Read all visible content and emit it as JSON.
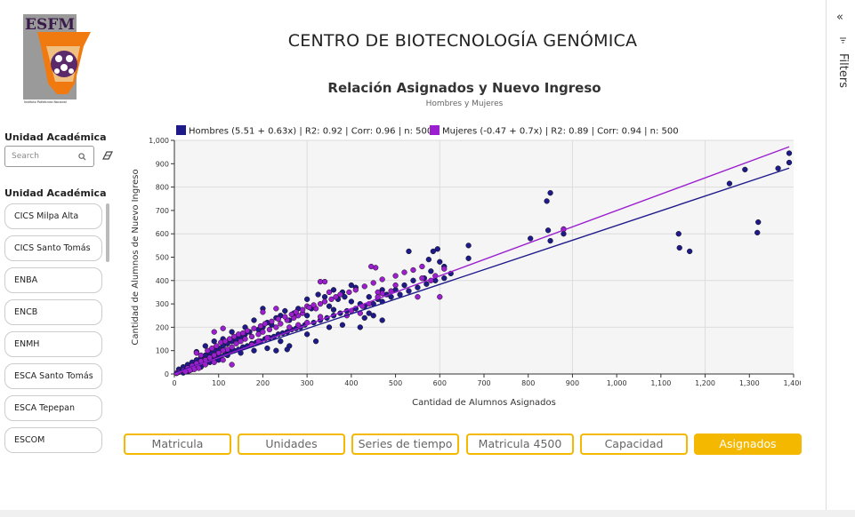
{
  "logo": {
    "text": "ESFM",
    "caption": "Instituto Politécnico Nacional"
  },
  "header": {
    "title": "CENTRO DE BIOTECNOLOGÍA GENÓMICA",
    "chart_title": "Relación Asignados y Nuevo Ingreso",
    "chart_subtitle": "Hombres y Mujeres"
  },
  "sidebar": {
    "section_label_top": "Unidad Académica",
    "search_placeholder": "Search",
    "section_label_list": "Unidad Académica",
    "items": [
      "CICS Milpa Alta",
      "CICS Santo Tomás",
      "ENBA",
      "ENCB",
      "ENMH",
      "ESCA Santo Tomás",
      "ESCA Tepepan",
      "ESCOM"
    ]
  },
  "tabs": [
    "Matricula",
    "Unidades",
    "Series de tiempo",
    "Matricula 4500",
    "Capacidad",
    "Asignados"
  ],
  "active_tab": "Asignados",
  "filters_label": "Filters",
  "colors": {
    "accent": "#f5b800",
    "hombres": "#1f1a8a",
    "mujeres": "#9b1fcf",
    "plot_bg": "#f5f5f5"
  },
  "chart_data": {
    "type": "scatter",
    "xlabel": "Cantidad de Alumnos Asignados",
    "ylabel": "Cantidad de Alumnos de Nuevo Ingreso",
    "xlim": [
      0,
      1400
    ],
    "ylim": [
      0,
      1000
    ],
    "x_ticks": [
      "0",
      "100",
      "200",
      "300",
      "400",
      "500",
      "600",
      "700",
      "800",
      "900",
      "1,000",
      "1,100",
      "1,200",
      "1,300",
      "1,400"
    ],
    "y_ticks": [
      "0",
      "100",
      "200",
      "300",
      "400",
      "500",
      "600",
      "700",
      "800",
      "900",
      "1,000"
    ],
    "grid": true,
    "legend_position": "top",
    "series": [
      {
        "name": "Hombres (5.51 + 0.63x) | R2: 0.92 | Corr: 0.96 | n: 500",
        "color": "#1f1a8a",
        "trend": {
          "intercept": 5.51,
          "slope": 0.63
        },
        "points": [
          [
            1390,
            945
          ],
          [
            1390,
            905
          ],
          [
            1365,
            880
          ],
          [
            1290,
            875
          ],
          [
            1255,
            815
          ],
          [
            1320,
            650
          ],
          [
            1318,
            605
          ],
          [
            1140,
            600
          ],
          [
            1142,
            540
          ],
          [
            1165,
            525
          ],
          [
            850,
            775
          ],
          [
            842,
            740
          ],
          [
            845,
            615
          ],
          [
            850,
            570
          ],
          [
            880,
            600
          ],
          [
            880,
            620
          ],
          [
            805,
            580
          ],
          [
            665,
            550
          ],
          [
            665,
            495
          ],
          [
            595,
            535
          ],
          [
            585,
            525
          ],
          [
            530,
            525
          ],
          [
            575,
            490
          ],
          [
            600,
            480
          ],
          [
            610,
            460
          ],
          [
            625,
            430
          ],
          [
            580,
            440
          ],
          [
            565,
            410
          ],
          [
            540,
            400
          ],
          [
            520,
            380
          ],
          [
            500,
            360
          ],
          [
            470,
            360
          ],
          [
            480,
            340
          ],
          [
            460,
            320
          ],
          [
            440,
            330
          ],
          [
            420,
            300
          ],
          [
            400,
            310
          ],
          [
            385,
            330
          ],
          [
            380,
            350
          ],
          [
            360,
            360
          ],
          [
            370,
            320
          ],
          [
            340,
            330
          ],
          [
            325,
            340
          ],
          [
            400,
            380
          ],
          [
            410,
            370
          ],
          [
            300,
            320
          ],
          [
            310,
            280
          ],
          [
            280,
            280
          ],
          [
            300,
            250
          ],
          [
            270,
            260
          ],
          [
            250,
            270
          ],
          [
            240,
            250
          ],
          [
            260,
            230
          ],
          [
            230,
            240
          ],
          [
            220,
            210
          ],
          [
            210,
            220
          ],
          [
            200,
            200
          ],
          [
            190,
            190
          ],
          [
            170,
            180
          ],
          [
            160,
            170
          ],
          [
            150,
            160
          ],
          [
            140,
            150
          ],
          [
            130,
            140
          ],
          [
            120,
            130
          ],
          [
            110,
            120
          ],
          [
            100,
            110
          ],
          [
            90,
            100
          ],
          [
            80,
            90
          ],
          [
            70,
            80
          ],
          [
            60,
            70
          ],
          [
            50,
            60
          ],
          [
            40,
            50
          ],
          [
            30,
            40
          ],
          [
            20,
            30
          ],
          [
            10,
            20
          ],
          [
            15,
            10
          ],
          [
            25,
            15
          ],
          [
            35,
            25
          ],
          [
            45,
            30
          ],
          [
            55,
            40
          ],
          [
            65,
            45
          ],
          [
            75,
            55
          ],
          [
            85,
            65
          ],
          [
            95,
            70
          ],
          [
            105,
            75
          ],
          [
            115,
            85
          ],
          [
            125,
            95
          ],
          [
            135,
            100
          ],
          [
            145,
            105
          ],
          [
            155,
            115
          ],
          [
            165,
            120
          ],
          [
            175,
            130
          ],
          [
            185,
            135
          ],
          [
            195,
            140
          ],
          [
            205,
            150
          ],
          [
            215,
            155
          ],
          [
            225,
            160
          ],
          [
            235,
            170
          ],
          [
            245,
            175
          ],
          [
            255,
            180
          ],
          [
            265,
            190
          ],
          [
            275,
            195
          ],
          [
            285,
            200
          ],
          [
            295,
            210
          ],
          [
            315,
            220
          ],
          [
            330,
            230
          ],
          [
            345,
            240
          ],
          [
            360,
            250
          ],
          [
            375,
            260
          ],
          [
            390,
            270
          ],
          [
            410,
            280
          ],
          [
            430,
            290
          ],
          [
            450,
            300
          ],
          [
            470,
            310
          ],
          [
            490,
            330
          ],
          [
            510,
            340
          ],
          [
            530,
            355
          ],
          [
            550,
            370
          ],
          [
            570,
            385
          ],
          [
            590,
            400
          ],
          [
            610,
            410
          ],
          [
            320,
            140
          ],
          [
            260,
            120
          ],
          [
            210,
            110
          ],
          [
            180,
            100
          ],
          [
            150,
            90
          ],
          [
            120,
            80
          ],
          [
            100,
            60
          ],
          [
            80,
            50
          ],
          [
            60,
            30
          ],
          [
            40,
            20
          ],
          [
            30,
            10
          ],
          [
            20,
            5
          ],
          [
            10,
            8
          ],
          [
            5,
            3
          ],
          [
            240,
            140
          ],
          [
            300,
            170
          ],
          [
            350,
            200
          ],
          [
            380,
            210
          ],
          [
            420,
            200
          ],
          [
            450,
            250
          ],
          [
            200,
            280
          ],
          [
            180,
            230
          ],
          [
            160,
            200
          ],
          [
            130,
            180
          ],
          [
            110,
            150
          ],
          [
            90,
            140
          ],
          [
            70,
            120
          ],
          [
            50,
            95
          ],
          [
            350,
            290
          ],
          [
            360,
            275
          ],
          [
            430,
            240
          ],
          [
            470,
            230
          ],
          [
            440,
            260
          ],
          [
            255,
            105
          ],
          [
            230,
            100
          ]
        ]
      },
      {
        "name": "Mujeres (-0.47 + 0.7x) | R2: 0.89 | Corr: 0.94 | n: 500",
        "color": "#9b1fcf",
        "trend": {
          "intercept": -0.47,
          "slope": 0.7
        },
        "points": [
          [
            880,
            620
          ],
          [
            610,
            450
          ],
          [
            590,
            420
          ],
          [
            580,
            400
          ],
          [
            600,
            330
          ],
          [
            550,
            330
          ],
          [
            490,
            355
          ],
          [
            470,
            345
          ],
          [
            460,
            350
          ],
          [
            455,
            455
          ],
          [
            445,
            460
          ],
          [
            440,
            300
          ],
          [
            420,
            260
          ],
          [
            425,
            290
          ],
          [
            400,
            270
          ],
          [
            390,
            250
          ],
          [
            330,
            395
          ],
          [
            340,
            395
          ],
          [
            350,
            350
          ],
          [
            330,
            300
          ],
          [
            320,
            280
          ],
          [
            300,
            290
          ],
          [
            290,
            260
          ],
          [
            280,
            250
          ],
          [
            270,
            240
          ],
          [
            255,
            230
          ],
          [
            240,
            215
          ],
          [
            230,
            200
          ],
          [
            215,
            190
          ],
          [
            200,
            180
          ],
          [
            190,
            170
          ],
          [
            175,
            160
          ],
          [
            160,
            150
          ],
          [
            150,
            140
          ],
          [
            140,
            130
          ],
          [
            130,
            115
          ],
          [
            120,
            105
          ],
          [
            110,
            100
          ],
          [
            100,
            90
          ],
          [
            90,
            80
          ],
          [
            80,
            70
          ],
          [
            70,
            60
          ],
          [
            60,
            55
          ],
          [
            50,
            45
          ],
          [
            40,
            35
          ],
          [
            30,
            25
          ],
          [
            20,
            15
          ],
          [
            10,
            8
          ],
          [
            5,
            4
          ],
          [
            50,
            90
          ],
          [
            60,
            80
          ],
          [
            75,
            100
          ],
          [
            85,
            110
          ],
          [
            95,
            120
          ],
          [
            105,
            135
          ],
          [
            115,
            140
          ],
          [
            125,
            150
          ],
          [
            135,
            160
          ],
          [
            145,
            170
          ],
          [
            155,
            175
          ],
          [
            165,
            185
          ],
          [
            180,
            195
          ],
          [
            195,
            205
          ],
          [
            205,
            215
          ],
          [
            220,
            225
          ],
          [
            235,
            235
          ],
          [
            250,
            245
          ],
          [
            265,
            255
          ],
          [
            275,
            265
          ],
          [
            290,
            275
          ],
          [
            305,
            285
          ],
          [
            315,
            295
          ],
          [
            340,
            310
          ],
          [
            355,
            320
          ],
          [
            365,
            330
          ],
          [
            375,
            340
          ],
          [
            395,
            350
          ],
          [
            410,
            360
          ],
          [
            430,
            375
          ],
          [
            450,
            390
          ],
          [
            470,
            405
          ],
          [
            500,
            420
          ],
          [
            520,
            435
          ],
          [
            540,
            445
          ],
          [
            560,
            460
          ],
          [
            130,
            40
          ],
          [
            110,
            60
          ],
          [
            90,
            50
          ],
          [
            70,
            40
          ],
          [
            55,
            25
          ],
          [
            45,
            20
          ],
          [
            35,
            15
          ],
          [
            25,
            10
          ],
          [
            210,
            155
          ],
          [
            190,
            140
          ],
          [
            175,
            125
          ],
          [
            260,
            200
          ],
          [
            280,
            210
          ],
          [
            300,
            220
          ],
          [
            330,
            245
          ],
          [
            460,
            330
          ],
          [
            500,
            380
          ],
          [
            560,
            410
          ],
          [
            200,
            265
          ],
          [
            230,
            280
          ],
          [
            110,
            195
          ],
          [
            90,
            180
          ]
        ]
      }
    ]
  }
}
